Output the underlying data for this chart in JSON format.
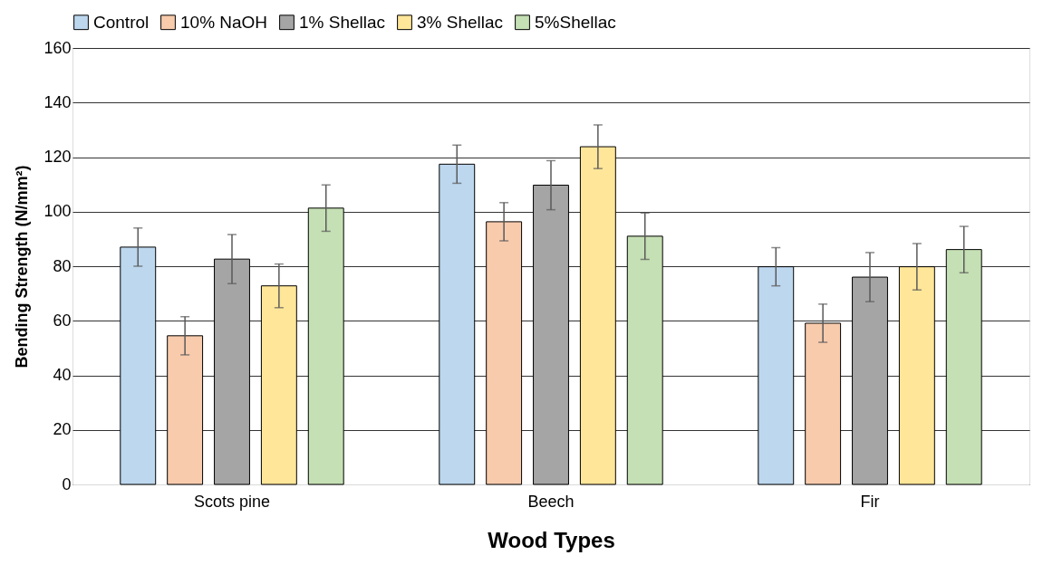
{
  "chart_data": {
    "type": "bar",
    "xlabel": "Wood Types",
    "ylabel": "Bending Strength (N/mm²)",
    "categories": [
      "Scots pine",
      "Beech",
      "Fir"
    ],
    "series": [
      {
        "name": "Control",
        "color": "#bdd7ee",
        "values": [
          87,
          117.4,
          79.8
        ],
        "errors": [
          7,
          7,
          7
        ]
      },
      {
        "name": "10% NaOH",
        "color": "#f8cbad",
        "values": [
          54.5,
          96.3,
          59.1
        ],
        "errors": [
          7,
          7,
          7
        ]
      },
      {
        "name": "1% Shellac",
        "color": "#a5a5a5",
        "values": [
          82.6,
          109.7,
          76
        ],
        "errors": [
          9,
          9,
          9
        ]
      },
      {
        "name": "3% Shellac",
        "color": "#ffe699",
        "values": [
          72.8,
          123.8,
          79.8
        ],
        "errors": [
          8,
          8,
          8.5
        ]
      },
      {
        "name": "5%Shellac",
        "color": "#c5e0b4",
        "values": [
          101.3,
          91,
          86.1
        ],
        "errors": [
          8.5,
          8.5,
          8.5
        ]
      }
    ],
    "ylim": [
      0,
      160
    ],
    "yticks": [
      0,
      20,
      40,
      60,
      80,
      100,
      120,
      140,
      160
    ],
    "grid": "y",
    "legend": "top"
  }
}
